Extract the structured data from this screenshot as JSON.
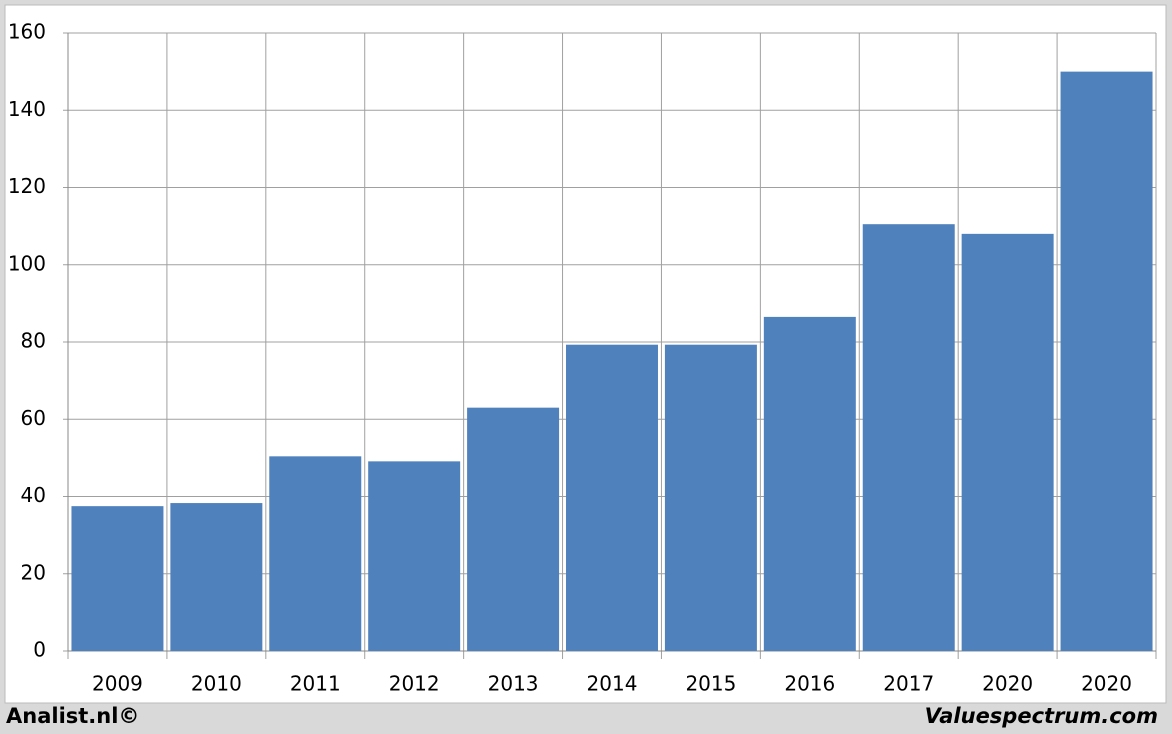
{
  "chart_data": {
    "type": "bar",
    "categories": [
      "2009",
      "2010",
      "2011",
      "2012",
      "2013",
      "2014",
      "2015",
      "2016",
      "2017",
      "2020",
      "2020"
    ],
    "values": [
      37.5,
      38.3,
      50.4,
      49.1,
      63,
      79.3,
      79.3,
      86.5,
      110.5,
      108,
      150
    ],
    "color": "#4f81bd",
    "ylim": [
      0,
      160
    ],
    "yticks": [
      0,
      20,
      40,
      60,
      80,
      100,
      120,
      140,
      160
    ],
    "grid": true,
    "footer_left": "Analist.nl©",
    "footer_right": "Valuespectrum.com"
  }
}
